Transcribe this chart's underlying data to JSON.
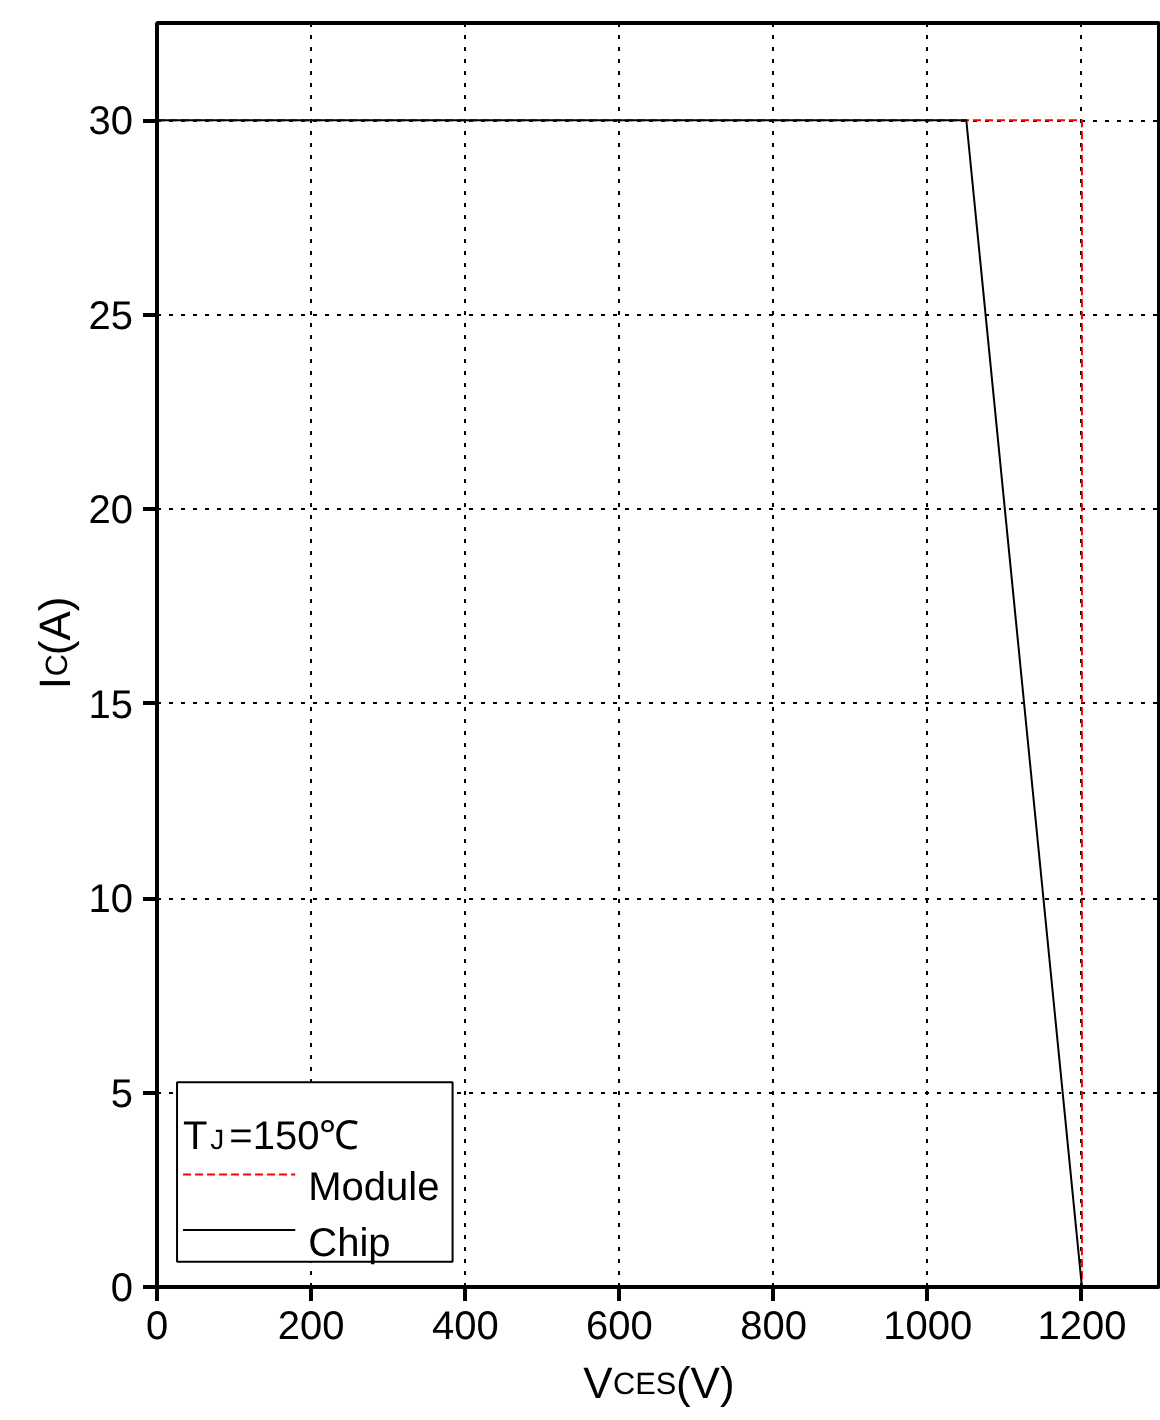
{
  "chart_data": {
    "type": "line",
    "xlabel": "V$_{CES}$(V)",
    "ylabel": "I$_{C}$(A)",
    "legend_title": "T$_{J}$=150℃",
    "xlim": [
      0,
      1300
    ],
    "ylim": [
      0,
      32.5
    ],
    "xticks": [
      0,
      200,
      400,
      600,
      800,
      1000,
      1200
    ],
    "yticks": [
      0,
      5,
      10,
      15,
      20,
      25,
      30
    ],
    "grid": true,
    "legend": "bottom left",
    "series": [
      {
        "name": "Module",
        "color": "#ff0000",
        "line_style": "dashed",
        "x": [
          0,
          1200,
          1200
        ],
        "values": [
          30,
          30,
          0
        ]
      },
      {
        "name": "Chip",
        "color": "#000000",
        "line_style": "solid",
        "x": [
          0,
          1050,
          1200
        ],
        "values": [
          30,
          30,
          0
        ]
      }
    ]
  }
}
